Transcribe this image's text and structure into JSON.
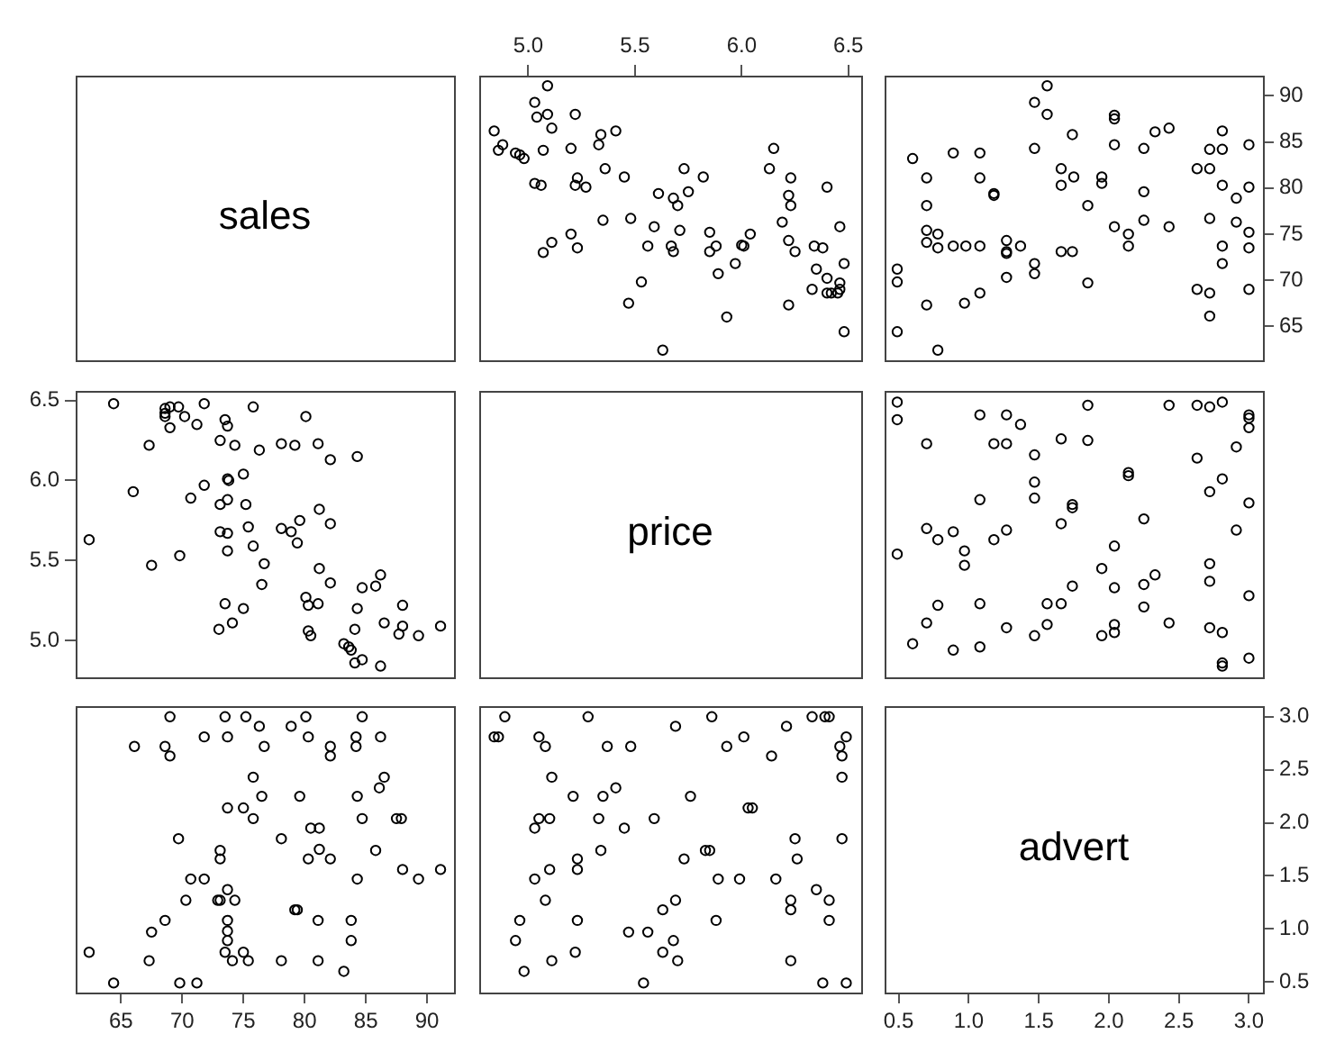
{
  "chart_data": [
    {
      "type": "other",
      "title": "sales"
    },
    {
      "type": "scatter",
      "color": "#000000",
      "marker": "circle",
      "tick_labels": "x",
      "xlim": [
        4.77,
        6.56
      ],
      "xticks": [
        {
          "value": 5,
          "label": "5.0"
        },
        5.5,
        {
          "value": 6,
          "label": "6.0"
        },
        6.5
      ],
      "ylim": [
        61.3,
        92.2
      ],
      "x": [
        6.48,
        6.45,
        6.46,
        6.46,
        6.42,
        6.4,
        6.4,
        6.48,
        6.46,
        6.33,
        6.35,
        6.38,
        6.34,
        6.4,
        6.22,
        6.25,
        6.22,
        6.19,
        6.23,
        6.22,
        6.23,
        6.13,
        6.15,
        5.93,
        5.89,
        5.97,
        6.01,
        6.0,
        6.04,
        5.85,
        5.88,
        5.85,
        5.63,
        5.47,
        5.53,
        5.68,
        5.67,
        5.56,
        5.71,
        5.59,
        5.48,
        5.35,
        5.7,
        5.68,
        5.75,
        5.61,
        5.82,
        5.73,
        5.45,
        5.36,
        5.23,
        5.2,
        5.07,
        5.11,
        5.27,
        5.22,
        5.23,
        5.06,
        5.03,
        5.33,
        5.41,
        5.34,
        5.2,
        5.22,
        4.98,
        4.96,
        4.94,
        5.07,
        4.88,
        4.86,
        4.84,
        5.11,
        5.04,
        5.09,
        5.03,
        5.09
      ],
      "values": [
        64.4,
        68.6,
        69.0,
        69.7,
        68.6,
        68.6,
        70.2,
        71.8,
        75.8,
        69.0,
        71.2,
        73.5,
        73.7,
        80.1,
        67.3,
        73.1,
        74.3,
        76.3,
        78.1,
        79.2,
        81.1,
        82.1,
        84.3,
        66.0,
        70.7,
        71.8,
        73.7,
        73.8,
        75.0,
        73.1,
        73.7,
        75.2,
        62.4,
        67.5,
        69.8,
        73.1,
        73.7,
        73.7,
        75.4,
        75.8,
        76.7,
        76.5,
        78.1,
        78.9,
        79.6,
        79.4,
        81.2,
        82.1,
        81.2,
        82.1,
        73.5,
        75.0,
        73.0,
        74.1,
        80.1,
        80.3,
        81.1,
        80.3,
        80.5,
        84.7,
        86.2,
        85.8,
        84.3,
        88.0,
        83.2,
        83.6,
        83.8,
        84.1,
        84.7,
        84.1,
        86.2,
        86.5,
        87.7,
        88.0,
        89.3,
        91.1
      ]
    },
    {
      "type": "scatter",
      "color": "#000000",
      "marker": "circle",
      "tick_labels": "y",
      "xlim": [
        0.4,
        3.1
      ],
      "ylim": [
        61.3,
        92.2
      ],
      "yticks": [
        65,
        70,
        75,
        80,
        85,
        90
      ],
      "x": [
        0.78,
        0.49,
        0.7,
        0.97,
        1.08,
        0.49,
        0.49,
        3.0,
        2.72,
        2.63,
        2.72,
        1.85,
        1.27,
        1.47,
        1.47,
        2.81,
        1.74,
        1.66,
        1.27,
        1.27,
        1.37,
        1.27,
        1.08,
        0.98,
        0.89,
        0.78,
        0.7,
        0.78,
        0.7,
        2.14,
        2.14,
        2.04,
        2.43,
        2.25,
        2.81,
        3.0,
        3.0,
        2.91,
        2.72,
        1.85,
        0.7,
        2.91,
        1.18,
        1.18,
        2.25,
        3.0,
        2.81,
        1.66,
        1.95,
        1.95,
        1.75,
        1.66,
        2.72,
        2.63,
        1.08,
        0.7,
        0.6,
        1.08,
        0.89,
        2.25,
        1.47,
        2.81,
        2.72,
        3.0,
        2.04,
        1.74,
        2.33,
        2.81,
        2.43,
        2.04,
        2.04,
        1.56,
        1.47,
        1.56
      ],
      "values": [
        62.4,
        64.4,
        67.3,
        67.5,
        68.6,
        69.8,
        71.2,
        69.0,
        68.6,
        69.0,
        66.1,
        69.7,
        70.3,
        70.7,
        71.8,
        71.8,
        73.1,
        73.1,
        72.9,
        73.1,
        73.7,
        74.3,
        73.7,
        73.7,
        73.7,
        73.5,
        74.1,
        75.0,
        75.4,
        73.7,
        75.0,
        75.8,
        75.8,
        76.5,
        73.7,
        73.5,
        75.2,
        76.3,
        76.7,
        78.1,
        78.1,
        78.9,
        79.2,
        79.4,
        79.6,
        80.1,
        80.3,
        80.3,
        80.5,
        81.2,
        81.2,
        82.1,
        82.1,
        82.1,
        81.1,
        81.1,
        83.2,
        83.8,
        83.8,
        84.3,
        84.3,
        84.2,
        84.2,
        84.7,
        84.7,
        85.8,
        86.1,
        86.2,
        86.5,
        87.5,
        87.9,
        88.0,
        89.3,
        91.1
      ]
    },
    {
      "type": "scatter",
      "color": "#000000",
      "marker": "circle",
      "tick_labels": "y",
      "xlim": [
        61.3,
        92.2
      ],
      "ylim": [
        4.77,
        6.56
      ],
      "yticks": [
        {
          "value": 5,
          "label": "5.0"
        },
        5.5,
        {
          "value": 6,
          "label": "6.0"
        },
        6.5
      ],
      "x": [
        64.4,
        68.6,
        69.0,
        69.7,
        68.6,
        68.6,
        70.2,
        71.8,
        75.8,
        69.0,
        71.2,
        73.5,
        73.7,
        80.1,
        67.3,
        73.1,
        74.3,
        76.3,
        78.1,
        79.2,
        81.1,
        82.1,
        84.3,
        66.0,
        70.7,
        71.8,
        73.7,
        73.8,
        75.0,
        73.1,
        73.7,
        75.2,
        62.4,
        67.5,
        69.8,
        73.1,
        73.7,
        73.7,
        75.4,
        75.8,
        76.7,
        76.5,
        78.1,
        78.9,
        79.6,
        79.4,
        81.2,
        82.1,
        81.2,
        82.1,
        73.5,
        75.0,
        73.0,
        74.1,
        80.1,
        80.3,
        81.1,
        80.3,
        80.5,
        84.7,
        86.2,
        85.8,
        84.3,
        88.0,
        83.2,
        83.6,
        83.8,
        84.1,
        84.7,
        84.1,
        86.2,
        86.5,
        87.7,
        88.0,
        89.3,
        91.1
      ],
      "values": [
        6.48,
        6.45,
        6.46,
        6.46,
        6.42,
        6.4,
        6.4,
        6.48,
        6.46,
        6.33,
        6.35,
        6.38,
        6.34,
        6.4,
        6.22,
        6.25,
        6.22,
        6.19,
        6.23,
        6.22,
        6.23,
        6.13,
        6.15,
        5.93,
        5.89,
        5.97,
        6.01,
        6.0,
        6.04,
        5.85,
        5.88,
        5.85,
        5.63,
        5.47,
        5.53,
        5.68,
        5.67,
        5.56,
        5.71,
        5.59,
        5.48,
        5.35,
        5.7,
        5.68,
        5.75,
        5.61,
        5.82,
        5.73,
        5.45,
        5.36,
        5.23,
        5.2,
        5.07,
        5.11,
        5.27,
        5.22,
        5.23,
        5.06,
        5.03,
        5.33,
        5.41,
        5.34,
        5.2,
        5.22,
        4.98,
        4.96,
        4.94,
        5.07,
        4.88,
        4.86,
        4.84,
        5.11,
        5.04,
        5.09,
        5.03,
        5.09
      ]
    },
    {
      "type": "other",
      "title": "price"
    },
    {
      "type": "scatter",
      "color": "#000000",
      "marker": "circle",
      "tick_labels": false,
      "xlim": [
        0.4,
        3.1
      ],
      "ylim": [
        4.77,
        6.56
      ],
      "x": [
        3.0,
        3.0,
        3.0,
        3.0,
        3.0,
        3.0,
        2.91,
        2.91,
        2.81,
        2.81,
        2.81,
        2.72,
        2.72,
        2.72,
        2.81,
        2.72,
        2.81,
        2.72,
        2.63,
        2.63,
        2.43,
        2.43,
        2.25,
        2.25,
        2.33,
        2.25,
        2.14,
        2.14,
        2.04,
        2.04,
        1.95,
        2.04,
        1.95,
        2.04,
        1.85,
        1.85,
        1.74,
        1.66,
        1.56,
        1.56,
        1.47,
        1.66,
        1.74,
        1.74,
        1.66,
        1.47,
        1.47,
        1.47,
        1.37,
        1.27,
        1.27,
        1.18,
        1.27,
        1.27,
        1.18,
        1.08,
        1.08,
        1.08,
        1.08,
        0.89,
        0.97,
        0.97,
        0.89,
        0.78,
        0.78,
        0.7,
        0.7,
        0.6,
        0.7,
        0.49,
        0.49,
        0.49
      ],
      "values": [
        4.89,
        5.28,
        5.86,
        6.33,
        6.39,
        6.41,
        5.69,
        6.21,
        4.84,
        4.86,
        5.05,
        5.08,
        5.37,
        5.48,
        6.01,
        5.93,
        6.49,
        6.46,
        6.47,
        6.14,
        5.11,
        6.47,
        5.21,
        5.35,
        5.41,
        5.76,
        6.03,
        6.05,
        5.05,
        5.1,
        5.03,
        5.33,
        5.45,
        5.59,
        6.25,
        6.47,
        5.34,
        5.23,
        5.23,
        5.1,
        5.03,
        5.73,
        5.83,
        5.85,
        6.26,
        5.89,
        5.99,
        6.16,
        6.35,
        6.41,
        6.23,
        6.23,
        5.08,
        5.69,
        5.63,
        4.96,
        5.23,
        5.88,
        6.41,
        4.94,
        5.47,
        5.56,
        5.68,
        5.63,
        5.22,
        5.11,
        5.7,
        4.98,
        6.23,
        5.54,
        6.38,
        6.49
      ]
    },
    {
      "type": "scatter",
      "color": "#000000",
      "marker": "circle",
      "tick_labels": "x",
      "xlim": [
        61.3,
        92.2
      ],
      "xticks": [
        65,
        70,
        75,
        80,
        85,
        90
      ],
      "ylim": [
        0.4,
        3.1
      ],
      "x": [
        62.4,
        64.4,
        67.3,
        67.5,
        68.6,
        69.8,
        71.2,
        69.0,
        68.6,
        69.0,
        66.1,
        69.7,
        70.3,
        70.7,
        71.8,
        71.8,
        73.1,
        73.1,
        72.9,
        73.1,
        73.7,
        74.3,
        73.7,
        73.7,
        73.7,
        73.5,
        74.1,
        75.0,
        75.4,
        73.7,
        75.0,
        75.8,
        75.8,
        76.5,
        73.7,
        73.5,
        75.2,
        76.3,
        76.7,
        78.1,
        78.1,
        78.9,
        79.2,
        79.4,
        79.6,
        80.1,
        80.3,
        80.3,
        80.5,
        81.2,
        81.2,
        82.1,
        82.1,
        82.1,
        81.1,
        81.1,
        83.2,
        83.8,
        83.8,
        84.3,
        84.3,
        84.2,
        84.2,
        84.7,
        84.7,
        85.8,
        86.1,
        86.2,
        86.5,
        87.5,
        87.9,
        88.0,
        89.3,
        91.1
      ],
      "values": [
        0.78,
        0.49,
        0.7,
        0.97,
        1.08,
        0.49,
        0.49,
        3.0,
        2.72,
        2.63,
        2.72,
        1.85,
        1.27,
        1.47,
        1.47,
        2.81,
        1.74,
        1.66,
        1.27,
        1.27,
        1.37,
        1.27,
        1.08,
        0.98,
        0.89,
        0.78,
        0.7,
        0.78,
        0.7,
        2.14,
        2.14,
        2.04,
        2.43,
        2.25,
        2.81,
        3.0,
        3.0,
        2.91,
        2.72,
        1.85,
        0.7,
        2.91,
        1.18,
        1.18,
        2.25,
        3.0,
        2.81,
        1.66,
        1.95,
        1.95,
        1.75,
        1.66,
        2.72,
        2.63,
        1.08,
        0.7,
        0.6,
        1.08,
        0.89,
        2.25,
        1.47,
        2.81,
        2.72,
        3.0,
        2.04,
        1.74,
        2.33,
        2.81,
        2.43,
        2.04,
        2.04,
        1.56,
        1.47,
        1.56
      ]
    },
    {
      "type": "scatter",
      "color": "#000000",
      "marker": "circle",
      "tick_labels": false,
      "xlim": [
        4.77,
        6.56
      ],
      "ylim": [
        0.4,
        3.1
      ],
      "x": [
        4.89,
        5.28,
        5.86,
        6.33,
        6.39,
        6.41,
        5.69,
        6.21,
        4.84,
        4.86,
        5.05,
        5.08,
        5.37,
        5.48,
        6.01,
        5.93,
        6.49,
        6.46,
        6.47,
        6.14,
        5.11,
        6.47,
        5.21,
        5.35,
        5.41,
        5.76,
        6.03,
        6.05,
        5.05,
        5.1,
        5.03,
        5.33,
        5.45,
        5.59,
        6.25,
        6.47,
        5.34,
        5.23,
        5.23,
        5.1,
        5.03,
        5.73,
        5.83,
        5.85,
        6.26,
        5.89,
        5.99,
        6.16,
        6.35,
        6.41,
        6.23,
        6.23,
        5.08,
        5.69,
        5.63,
        4.96,
        5.23,
        5.88,
        6.41,
        4.94,
        5.47,
        5.56,
        5.68,
        5.63,
        5.22,
        5.11,
        5.7,
        4.98,
        6.23,
        5.54,
        6.38,
        6.49
      ],
      "values": [
        3.0,
        3.0,
        3.0,
        3.0,
        3.0,
        3.0,
        2.91,
        2.91,
        2.81,
        2.81,
        2.81,
        2.72,
        2.72,
        2.72,
        2.81,
        2.72,
        2.81,
        2.72,
        2.63,
        2.63,
        2.43,
        2.43,
        2.25,
        2.25,
        2.33,
        2.25,
        2.14,
        2.14,
        2.04,
        2.04,
        1.95,
        2.04,
        1.95,
        2.04,
        1.85,
        1.85,
        1.74,
        1.66,
        1.56,
        1.56,
        1.47,
        1.66,
        1.74,
        1.74,
        1.66,
        1.47,
        1.47,
        1.47,
        1.37,
        1.27,
        1.27,
        1.18,
        1.27,
        1.27,
        1.18,
        1.08,
        1.08,
        1.08,
        1.08,
        0.89,
        0.97,
        0.97,
        0.89,
        0.78,
        0.78,
        0.7,
        0.7,
        0.6,
        0.7,
        0.49,
        0.49,
        0.49
      ]
    },
    {
      "type": "scatter",
      "title": "advert",
      "xlim": [
        0.4,
        3.1
      ],
      "xticks": [
        0.5,
        {
          "value": 1,
          "label": "1.0"
        },
        1.5,
        {
          "value": 2,
          "label": "2.0"
        },
        2.5,
        {
          "value": 3,
          "label": "3.0"
        }
      ],
      "ylim": [
        0.4,
        3.1
      ],
      "yticks": [
        0.5,
        {
          "value": 1,
          "label": "1.0"
        },
        1.5,
        {
          "value": 2,
          "label": "2.0"
        },
        2.5,
        {
          "value": 3,
          "label": "3.0"
        }
      ]
    }
  ]
}
